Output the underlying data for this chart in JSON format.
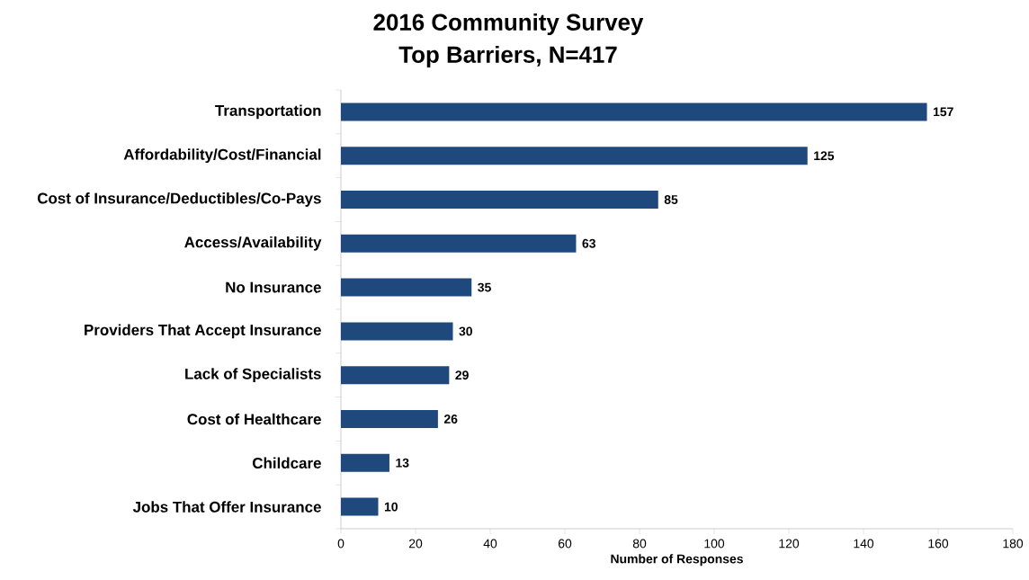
{
  "chart_data": {
    "type": "bar",
    "orientation": "horizontal",
    "title": "2016 Community Survey",
    "subtitle": "Top Barriers, N=417",
    "xlabel": "Number of Responses",
    "categories": [
      "Transportation",
      "Affordability/Cost/Financial",
      "Cost of Insurance/Deductibles/Co-Pays",
      "Access/Availability",
      "No Insurance",
      "Providers That Accept Insurance",
      "Lack of Specialists",
      "Cost of Healthcare",
      "Childcare",
      "Jobs That Offer Insurance"
    ],
    "values": [
      157,
      125,
      85,
      63,
      35,
      30,
      29,
      26,
      13,
      10
    ],
    "color": "#1f497d",
    "data_labels": true,
    "xlim": [
      0,
      180
    ],
    "xticks": [
      0,
      20,
      40,
      60,
      80,
      100,
      120,
      140,
      160,
      180
    ]
  }
}
